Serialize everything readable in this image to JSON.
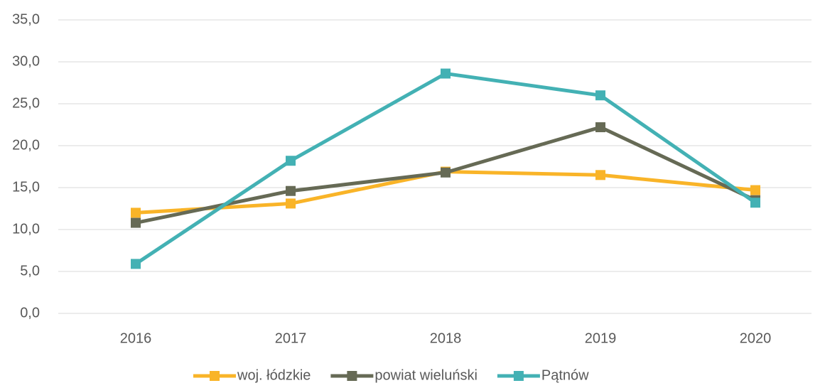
{
  "chart_data": {
    "type": "line",
    "categories": [
      "2016",
      "2017",
      "2018",
      "2019",
      "2020"
    ],
    "series": [
      {
        "name": "woj. łódzkie",
        "color": "#f9b428",
        "values": [
          12.0,
          13.1,
          16.9,
          16.5,
          14.7
        ]
      },
      {
        "name": "powiat wieluński",
        "color": "#666a55",
        "values": [
          10.8,
          14.6,
          16.8,
          22.2,
          13.5
        ]
      },
      {
        "name": "Pątnów",
        "color": "#43b1b4",
        "values": [
          5.9,
          18.2,
          28.6,
          26.0,
          13.2
        ]
      }
    ],
    "ylim": [
      0,
      35
    ],
    "yticks": [
      {
        "value": 0,
        "label": "0,0"
      },
      {
        "value": 5,
        "label": "5,0"
      },
      {
        "value": 10,
        "label": "10,0"
      },
      {
        "value": 15,
        "label": "15,0"
      },
      {
        "value": 20,
        "label": "20,0"
      },
      {
        "value": 25,
        "label": "25,0"
      },
      {
        "value": 30,
        "label": "30,0"
      },
      {
        "value": 35,
        "label": "35,0"
      }
    ],
    "grid": true,
    "legend": "bottom"
  }
}
